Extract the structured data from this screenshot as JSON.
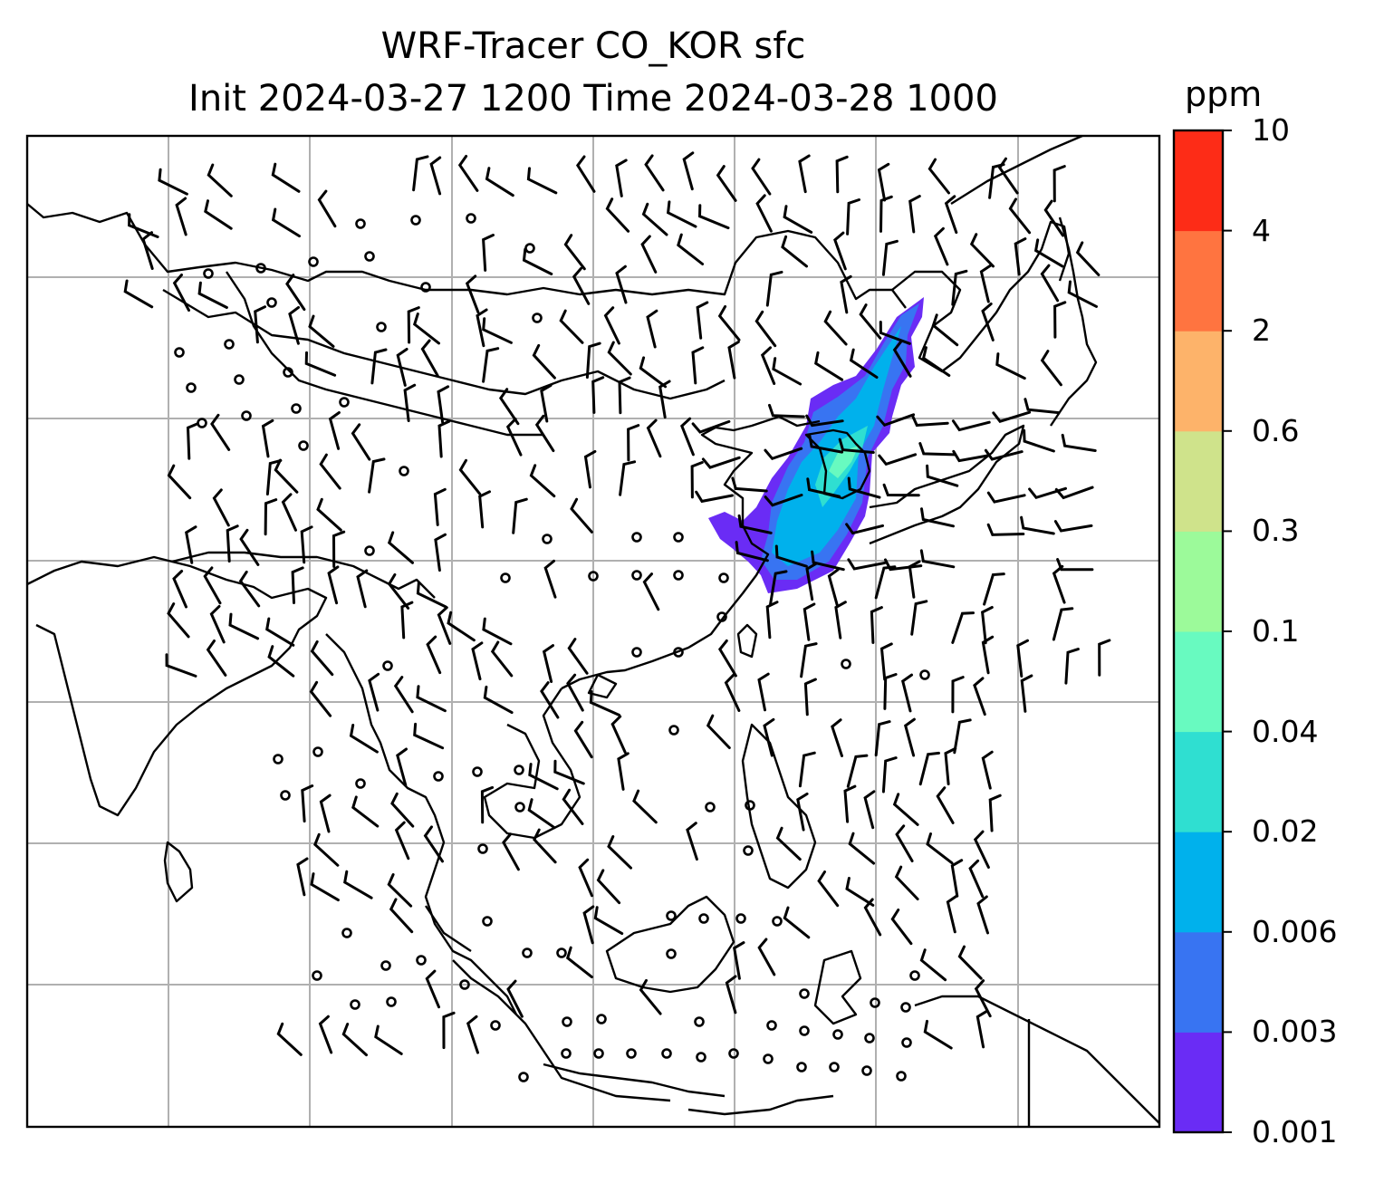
{
  "title_line1": "WRF-Tracer CO_KOR sfc",
  "title_line2": "Init 2024-03-27 1200 Time 2024-03-28 1000",
  "colorbar": {
    "unit": "ppm",
    "levels": [
      "0.001",
      "0.003",
      "0.006",
      "0.02",
      "0.04",
      "0.1",
      "0.3",
      "0.6",
      "2",
      "4",
      "10"
    ],
    "colors": [
      "#6a2cf5",
      "#3874f2",
      "#00b1ec",
      "#2fdfd1",
      "#68fac0",
      "#9cfa9a",
      "#cfe38b",
      "#fdb36a",
      "#ff7440",
      "#fd2c17"
    ]
  },
  "map": {
    "tracer": "CO_KOR",
    "level": "sfc",
    "gridlines": true,
    "overlay": "wind barbs",
    "plume_region": "Korea / Yellow Sea / Northeast China"
  }
}
